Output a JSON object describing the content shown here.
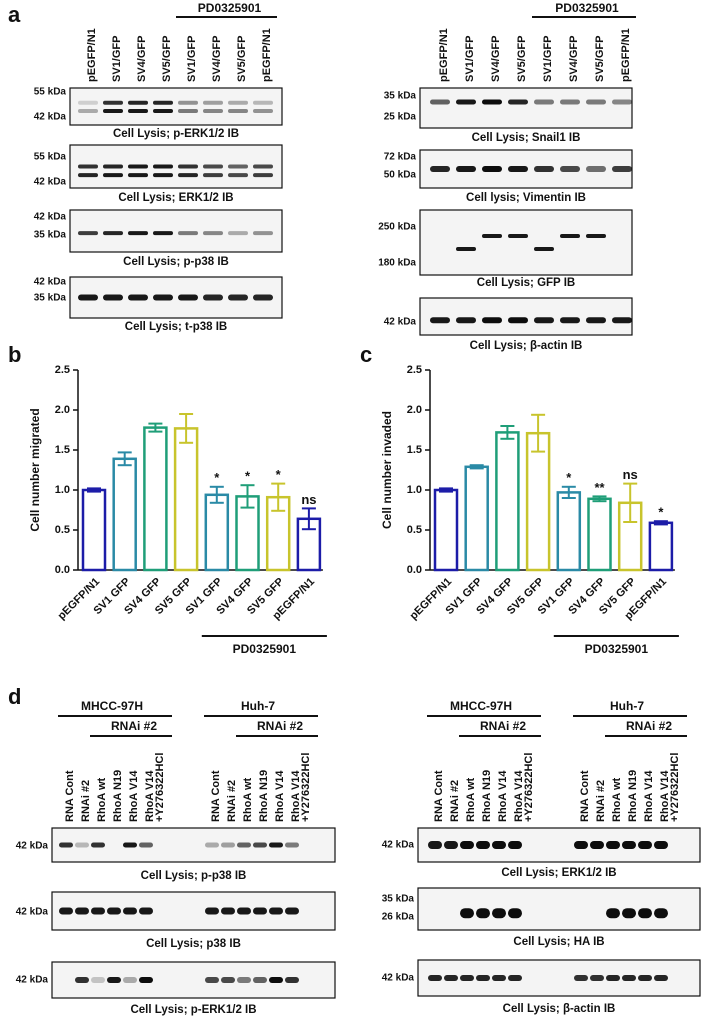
{
  "panel_a": {
    "label": "a",
    "left": {
      "lanes": [
        "pEGFP/N1",
        "SV1/GFP",
        "SV4/GFP",
        "SV5/GFP",
        "SV1/GFP",
        "SV4/GFP",
        "SV5/GFP",
        "pEGFP/N1"
      ],
      "treatment": "PD0325901",
      "blots": [
        {
          "markers": [
            "55 kDa",
            "42 kDa"
          ],
          "caption": "Cell Lysis; p-ERK1/2 IB"
        },
        {
          "markers": [
            "55 kDa",
            "42 kDa"
          ],
          "caption": "Cell Lysis; ERK1/2 IB"
        },
        {
          "markers": [
            "42 kDa",
            "35 kDa"
          ],
          "caption": "Cell Lysis; p-p38 IB"
        },
        {
          "markers": [
            "42 kDa",
            "35 kDa"
          ],
          "caption": "Cell Lysis; t-p38 IB"
        }
      ]
    },
    "right": {
      "lanes": [
        "pEGFP/N1",
        "SV1/GFP",
        "SV4/GFP",
        "SV5/GFP",
        "SV1/GFP",
        "SV4/GFP",
        "SV5/GFP",
        "pEGFP/N1"
      ],
      "treatment": "PD0325901",
      "blots": [
        {
          "markers": [
            "35 kDa",
            "25 kDa"
          ],
          "caption": "Cell Lysis; Snail1 IB"
        },
        {
          "markers": [
            "72 kDa",
            "50 kDa"
          ],
          "caption": "Cell lysis; Vimentin IB"
        },
        {
          "markers": [
            "250 kDa",
            "180 kDa"
          ],
          "caption": "Cell Lysis; GFP IB"
        },
        {
          "markers": [
            "42 kDa"
          ],
          "caption": "Cell Lysis; β-actin IB"
        }
      ]
    }
  },
  "chart_data": [
    {
      "type": "bar",
      "panel_label": "b",
      "y_label": "Cell number migrated",
      "categories": [
        "pEGFP/N1",
        "SV1 GFP",
        "SV4 GFP",
        "SV5 GFP",
        "SV1 GFP",
        "SV4 GFP",
        "SV5 GFP",
        "pEGFP/N1"
      ],
      "values": [
        1.0,
        1.39,
        1.78,
        1.77,
        0.94,
        0.92,
        0.91,
        0.64
      ],
      "errors": [
        0.02,
        0.08,
        0.05,
        0.18,
        0.1,
        0.14,
        0.17,
        0.13
      ],
      "colors": [
        "#1c1ca8",
        "#2a8aa6",
        "#1f9e78",
        "#c8c42c",
        "#2a8aa6",
        "#1f9e78",
        "#c8c42c",
        "#1c1ca8"
      ],
      "annotations": [
        null,
        null,
        null,
        null,
        "*",
        "*",
        "*",
        "ns"
      ],
      "group_label": "PD0325901",
      "ylim": [
        0,
        2.5
      ],
      "yticks": [
        {
          "value": 0,
          "label": "0.0"
        },
        0.5,
        {
          "value": 1,
          "label": "1.0"
        },
        1.5,
        {
          "value": 2,
          "label": "2.0"
        },
        2.5
      ]
    },
    {
      "type": "bar",
      "panel_label": "c",
      "y_label": "Cell number invaded",
      "categories": [
        "pEGFP/N1",
        "SV1 GFP",
        "SV4 GFP",
        "SV5 GFP",
        "SV1 GFP",
        "SV4 GFP",
        "SV5 GFP",
        "pEGFP/N1"
      ],
      "values": [
        1.0,
        1.29,
        1.72,
        1.71,
        0.97,
        0.89,
        0.84,
        0.59
      ],
      "errors": [
        0.02,
        0.02,
        0.08,
        0.23,
        0.07,
        0.03,
        0.24,
        0.02
      ],
      "colors": [
        "#1c1ca8",
        "#2a8aa6",
        "#1f9e78",
        "#c8c42c",
        "#2a8aa6",
        "#1f9e78",
        "#c8c42c",
        "#1c1ca8"
      ],
      "annotations": [
        null,
        null,
        null,
        null,
        "*",
        "**",
        "ns",
        "*"
      ],
      "group_label": "PD0325901",
      "ylim": [
        0,
        2.5
      ],
      "yticks": [
        {
          "value": 0,
          "label": "0.0"
        },
        0.5,
        {
          "value": 1,
          "label": "1.0"
        },
        1.5,
        {
          "value": 2,
          "label": "2.0"
        },
        2.5
      ]
    }
  ],
  "panel_d": {
    "label": "d",
    "lanes": [
      "RNA Cont",
      "RNAi #2",
      "RhoA wt",
      "RhoA N19",
      "RhoA V14",
      [
        "RhoA V14",
        "+Y276322HCl"
      ]
    ],
    "left": {
      "groups": [
        {
          "name": "MHCC-97H",
          "subgroup": "RNAi #2"
        },
        {
          "name": "Huh-7",
          "subgroup": "RNAi #2"
        }
      ],
      "blots": [
        {
          "markers": [
            "42 kDa"
          ],
          "caption": "Cell Lysis; p-p38 IB"
        },
        {
          "markers": [
            "42 kDa"
          ],
          "caption": "Cell Lysis; p38 IB"
        },
        {
          "markers": [
            "42 kDa"
          ],
          "caption": "Cell Lysis; p-ERK1/2 IB"
        }
      ]
    },
    "right": {
      "groups": [
        {
          "name": "MHCC-97H",
          "subgroup": "RNAi #2"
        },
        {
          "name": "Huh-7",
          "subgroup": "RNAi #2"
        }
      ],
      "blots": [
        {
          "markers": [
            "42 kDa"
          ],
          "caption": "Cell Lysis; ERK1/2 IB"
        },
        {
          "markers": [
            "35 kDa",
            "26 kDa"
          ],
          "caption": "Cell Lysis; HA IB"
        },
        {
          "markers": [
            "42 kDa"
          ],
          "caption": "Cell Lysis; β-actin IB"
        }
      ]
    }
  }
}
